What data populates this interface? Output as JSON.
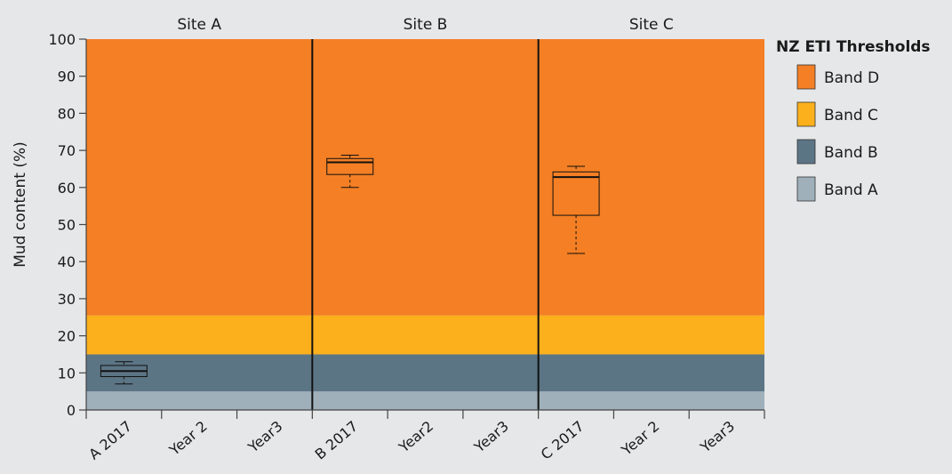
{
  "chart_data": {
    "type": "box",
    "ylabel": "Mud content (%)",
    "ylim": [
      0,
      100
    ],
    "yticks": [
      0,
      10,
      20,
      30,
      40,
      50,
      60,
      70,
      80,
      90,
      100
    ],
    "panels": [
      "Site A",
      "Site B",
      "Site C"
    ],
    "categories": [
      "A 2017",
      "Year 2",
      "Year3",
      "B 2017",
      "Year2",
      "Year3",
      "C 2017",
      "Year 2",
      "Year3"
    ],
    "bands": [
      {
        "name": "Band A",
        "from": 0,
        "to": 5,
        "color": "#9fb0bb"
      },
      {
        "name": "Band B",
        "from": 5,
        "to": 15,
        "color": "#5c7585"
      },
      {
        "name": "Band C",
        "from": 15,
        "to": 25.5,
        "color": "#fbb01c"
      },
      {
        "name": "Band D",
        "from": 25.5,
        "to": 100,
        "color": "#f47f24"
      }
    ],
    "boxes": [
      {
        "category": "A 2017",
        "min": 7,
        "q1": 9,
        "median": 10.5,
        "q3": 12,
        "max": 13
      },
      {
        "category": "B 2017",
        "min": 60,
        "q1": 63.5,
        "median": 66.8,
        "q3": 67.8,
        "max": 68.7
      },
      {
        "category": "C 2017",
        "min": 42.2,
        "q1": 52.5,
        "median": 62.8,
        "q3": 64.2,
        "max": 65.7
      }
    ],
    "legend": {
      "title": "NZ ETI Thresholds",
      "position": "right",
      "items": [
        {
          "label": "Band D",
          "color": "#f47f24"
        },
        {
          "label": "Band C",
          "color": "#fbb01c"
        },
        {
          "label": "Band B",
          "color": "#5c7585"
        },
        {
          "label": "Band A",
          "color": "#9fb0bb"
        }
      ]
    }
  }
}
